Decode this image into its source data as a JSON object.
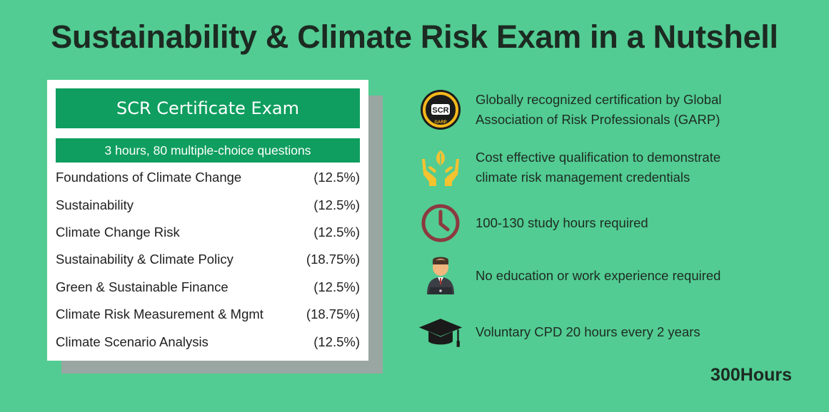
{
  "title": "Sustainability & Climate Risk Exam in a Nutshell",
  "card": {
    "header": "SCR Certificate Exam",
    "subheader": "3 hours, 80 multiple-choice questions",
    "topics": [
      {
        "name": "Foundations of Climate Change",
        "weight": "(12.5%)"
      },
      {
        "name": "Sustainability",
        "weight": "(12.5%)"
      },
      {
        "name": "Climate Change Risk",
        "weight": "(12.5%)"
      },
      {
        "name": "Sustainability & Climate Policy",
        "weight": "(18.75%)"
      },
      {
        "name": "Green & Sustainable Finance",
        "weight": "(12.5%)"
      },
      {
        "name": "Climate Risk Measurement & Mgmt",
        "weight": "(18.75%)"
      },
      {
        "name": "Climate Scenario Analysis",
        "weight": "(12.5%)"
      }
    ]
  },
  "features": [
    {
      "icon": "scr-badge-icon",
      "badge_text": "SCR",
      "badge_bottom": "GARP",
      "text_line1": "Globally recognized certification by Global",
      "text_line2": "Association of Risk Professionals (GARP)"
    },
    {
      "icon": "hands-leaf-icon",
      "text_line1": "Cost effective qualification to demonstrate",
      "text_line2": "climate risk management credentials"
    },
    {
      "icon": "clock-icon",
      "text_line1": "100-130 study hours required"
    },
    {
      "icon": "person-laptop-icon",
      "text_line1": "No education or work experience required"
    },
    {
      "icon": "graduation-cap-icon",
      "text_line1": "Voluntary CPD 20 hours every 2 years"
    }
  ],
  "brand": "300Hours",
  "colors": {
    "background": "#52cc92",
    "accent_green": "#0f9e5f",
    "clock_red": "#8b3a3f",
    "hands_yellow": "#f5c230",
    "text_dark": "#1c2a22"
  }
}
